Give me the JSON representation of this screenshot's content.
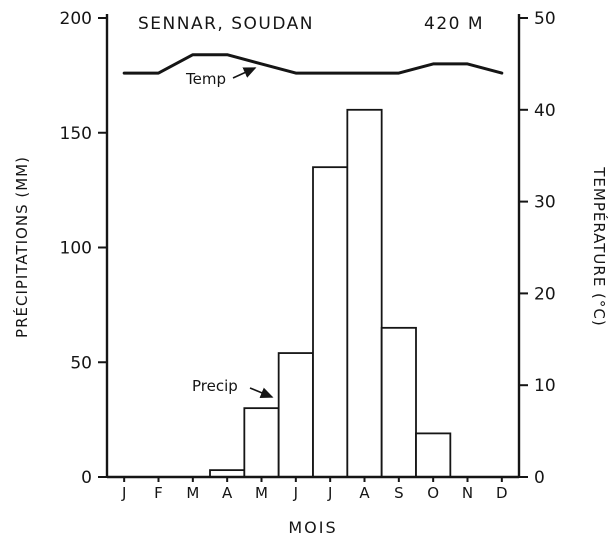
{
  "header": {
    "title": "SENNAR, SOUDAN",
    "elevation": "420 M"
  },
  "axes": {
    "x_label": "MOIS",
    "y_left_label": "PRÉCIPITATIONS (MM)",
    "y_right_label": "TEMPÉRATURE (°C)"
  },
  "annotations": {
    "temp": "Temp",
    "precip": "Precip"
  },
  "colors": {
    "ink": "#151515",
    "background": "#ffffff"
  },
  "chart_data": {
    "type": "bar",
    "title": "SENNAR, SOUDAN",
    "subtitle": "420 M",
    "xlabel": "MOIS",
    "ylabel_left": "PRÉCIPITATIONS (MM)",
    "ylabel_right": "TEMPÉRATURE (°C)",
    "categories": [
      "J",
      "F",
      "M",
      "A",
      "M",
      "J",
      "J",
      "A",
      "S",
      "O",
      "N",
      "D"
    ],
    "series": [
      {
        "name": "Precip",
        "type": "bar",
        "axis": "left",
        "unit": "mm",
        "values": [
          0,
          0,
          0,
          3,
          30,
          54,
          135,
          160,
          65,
          19,
          0,
          0
        ]
      },
      {
        "name": "Temp",
        "type": "line",
        "axis": "right",
        "unit": "°C",
        "values": [
          44,
          44,
          46,
          46,
          45,
          44,
          44,
          44,
          44,
          45,
          45,
          44
        ]
      }
    ],
    "y_left": {
      "min": 0,
      "max": 200,
      "ticks": [
        0,
        50,
        100,
        150,
        200
      ]
    },
    "y_right": {
      "min": 0,
      "max": 50,
      "ticks": [
        0,
        10,
        20,
        30,
        40,
        50
      ]
    },
    "grid": false,
    "legend": "none",
    "bar_fill": "#ffffff",
    "bar_stroke": "#151515",
    "line_color": "#151515"
  }
}
